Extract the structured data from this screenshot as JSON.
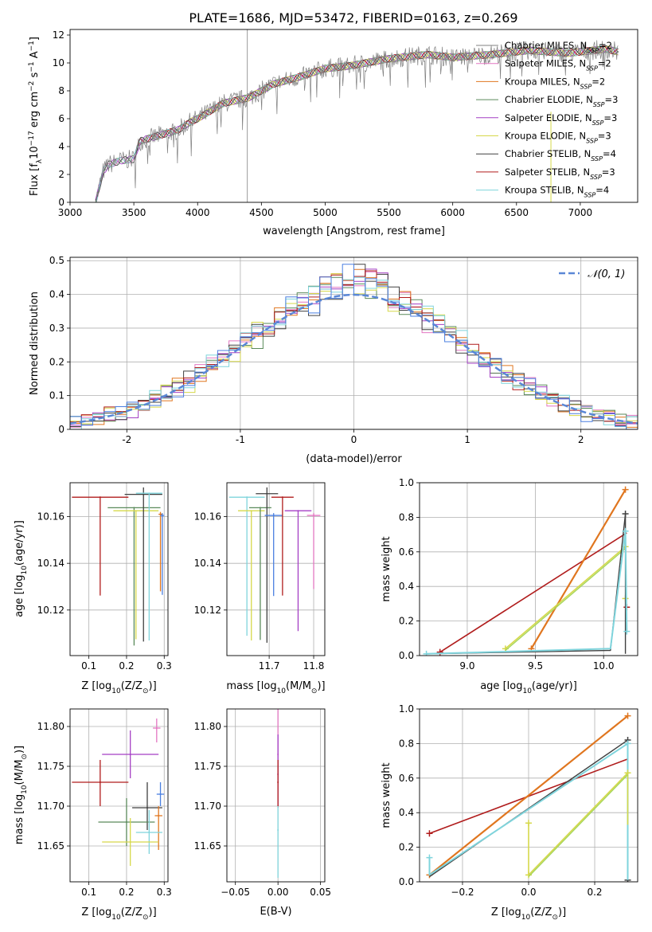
{
  "title": "PLATE=1686, MJD=53472, FIBERID=0163, z=0.269",
  "colors": {
    "chabrier_miles": "#808080",
    "salpeter_miles": "#e377c2",
    "kroupa_miles": "#e0761f",
    "chabrier_elodie": "#5a8a5a",
    "salpeter_elodie": "#a43fc4",
    "kroupa_elodie": "#d6d84a",
    "chabrier_stelib": "#404040",
    "salpeter_stelib": "#b01c1c",
    "kroupa_stelib": "#7fd4dc",
    "normal": "#5a87d6",
    "extra1": "#4a7fe0",
    "extra2": "#a6d65a"
  },
  "chart_data": [
    {
      "type": "line",
      "title": "PLATE=1686, MJD=53472, FIBERID=0163, z=0.269",
      "xlabel": "wavelength [Angstrom, rest frame]",
      "ylabel_parts": {
        "main": "Flux [f",
        "sub1": "λ",
        "mid": "10",
        "sup1": "−17",
        "rest": " erg cm",
        "sup2": "−2",
        "s": " s",
        "sup3": "−1",
        "a": " A",
        "sup4": "−1",
        "end": "]"
      },
      "xlim": [
        3000,
        7450
      ],
      "ylim": [
        0,
        12.4
      ],
      "xticks": [
        3000,
        3500,
        4000,
        4500,
        5000,
        5500,
        6000,
        6500,
        7000
      ],
      "yticks": [
        0,
        2,
        4,
        6,
        8,
        10,
        12
      ],
      "legend_position": "right",
      "series": [
        {
          "name": "Chabrier MILES, N",
          "sub": "SSP",
          "nval": "=2",
          "color_key": "chabrier_miles"
        },
        {
          "name": "Salpeter MILES, N",
          "sub": "SSP",
          "nval": "=2",
          "color_key": "salpeter_miles"
        },
        {
          "name": "Kroupa MILES, N",
          "sub": "SSP",
          "nval": "=2",
          "color_key": "kroupa_miles"
        },
        {
          "name": "Chabrier ELODIE, N",
          "sub": "SSP",
          "nval": "=3",
          "color_key": "chabrier_elodie"
        },
        {
          "name": "Salpeter ELODIE, N",
          "sub": "SSP",
          "nval": "=3",
          "color_key": "salpeter_elodie"
        },
        {
          "name": "Kroupa ELODIE, N",
          "sub": "SSP",
          "nval": "=3",
          "color_key": "kroupa_elodie"
        },
        {
          "name": "Chabrier STELIB, N",
          "sub": "SSP",
          "nval": "=4",
          "color_key": "chabrier_stelib"
        },
        {
          "name": "Salpeter STELIB, N",
          "sub": "SSP",
          "nval": "=3",
          "color_key": "salpeter_stelib"
        },
        {
          "name": "Kroupa STELIB, N",
          "sub": "SSP",
          "nval": "=4",
          "color_key": "kroupa_stelib"
        }
      ],
      "model_trend": {
        "x": [
          3200,
          3260,
          3300,
          3400,
          3500,
          3550,
          3700,
          3850,
          3950,
          4000,
          4200,
          4400,
          4600,
          4800,
          5000,
          5200,
          5500,
          5800,
          6000,
          6300,
          6600,
          6900,
          7200,
          7300
        ],
        "y": [
          0.0,
          2.2,
          2.7,
          3.0,
          3.1,
          4.4,
          4.8,
          5.2,
          5.8,
          6.0,
          7.1,
          7.5,
          8.5,
          9.0,
          9.6,
          9.8,
          10.3,
          10.6,
          10.4,
          10.6,
          10.9,
          10.7,
          11.0,
          10.8
        ]
      }
    },
    {
      "type": "step",
      "xlabel": "(data-model)/error",
      "ylabel": "Normed distribution",
      "xlim": [
        -2.5,
        2.5
      ],
      "ylim": [
        0,
        0.51
      ],
      "xticks": [
        -2,
        -1,
        0,
        1,
        2
      ],
      "yticks": [
        0.0,
        0.1,
        0.2,
        0.3,
        0.4,
        0.5
      ],
      "legend": "𝒩(0, 1)",
      "legend_position": "top-right",
      "bin_width": 0.1
    },
    {
      "type": "scatter",
      "xlabel_main": "Z [log",
      "xlabel_sub": "10",
      "xlabel_rest": "(Z/Z",
      "xlabel_end": ")]",
      "ylabel_main": "age  [log",
      "ylabel_sub": "10",
      "ylabel_rest": "(age/yr)]",
      "xlim": [
        0.05,
        0.31
      ],
      "ylim": [
        10.1005,
        10.1745
      ],
      "xticks": [
        "0.1",
        "0.2",
        "0.3"
      ],
      "yticks": [
        "10.12",
        "10.14",
        "10.16"
      ],
      "points": [
        {
          "x": 0.13,
          "xerr": 0.075,
          "y": 10.1683,
          "ylo": 10.1262,
          "yhi": 10.1683,
          "color_key": "salpeter_stelib"
        },
        {
          "x": 0.22,
          "xerr": 0.07,
          "y": 10.1638,
          "ylo": 10.1048,
          "yhi": 10.1638,
          "color_key": "chabrier_elodie"
        },
        {
          "x": 0.225,
          "xerr": 0.06,
          "y": 10.1625,
          "ylo": 10.1075,
          "yhi": 10.1625,
          "color_key": "kroupa_elodie"
        },
        {
          "x": 0.245,
          "xerr": 0.05,
          "y": 10.1695,
          "ylo": 10.1065,
          "yhi": 10.1725,
          "color_key": "chabrier_stelib"
        },
        {
          "x": 0.26,
          "xerr": 0.035,
          "y": 10.17,
          "ylo": 10.107,
          "yhi": 10.17,
          "color_key": "kroupa_stelib"
        },
        {
          "x": 0.29,
          "xerr": 0.005,
          "y": 10.161,
          "ylo": 10.128,
          "yhi": 10.162,
          "color_key": "kroupa_miles"
        },
        {
          "x": 0.295,
          "xerr": 0.005,
          "y": 10.1605,
          "ylo": 10.1265,
          "yhi": 10.1615,
          "color_key": "extra1"
        }
      ]
    },
    {
      "type": "scatter",
      "xlabel_main": "mass [log",
      "xlabel_sub": "10",
      "xlabel_rest": "(M/M",
      "xlabel_end": ")]",
      "xlim": [
        11.605,
        11.825
      ],
      "ylim": [
        10.1005,
        10.1745
      ],
      "xticks": [
        "11.7",
        "11.8"
      ],
      "yticks": [
        "10.12",
        "10.14",
        "10.16"
      ],
      "points": [
        {
          "x": 11.65,
          "xerr": 0.04,
          "y": 10.1683,
          "ylo": 10.109,
          "yhi": 10.1683,
          "color_key": "kroupa_stelib"
        },
        {
          "x": 11.66,
          "xerr": 0.03,
          "y": 10.1625,
          "ylo": 10.107,
          "yhi": 10.1625,
          "color_key": "kroupa_elodie"
        },
        {
          "x": 11.68,
          "xerr": 0.025,
          "y": 10.1638,
          "ylo": 10.1072,
          "yhi": 10.1638,
          "color_key": "chabrier_elodie"
        },
        {
          "x": 11.695,
          "xerr": 0.025,
          "y": 10.1698,
          "ylo": 10.106,
          "yhi": 10.1725,
          "color_key": "chabrier_stelib"
        },
        {
          "x": 11.71,
          "xerr": 0.02,
          "y": 10.1605,
          "ylo": 10.126,
          "yhi": 10.1615,
          "color_key": "extra1"
        },
        {
          "x": 11.73,
          "xerr": 0.025,
          "y": 10.1683,
          "ylo": 10.1262,
          "yhi": 10.1683,
          "color_key": "salpeter_stelib"
        },
        {
          "x": 11.765,
          "xerr": 0.03,
          "y": 10.1625,
          "ylo": 10.111,
          "yhi": 10.1625,
          "color_key": "salpeter_elodie"
        },
        {
          "x": 11.8,
          "xerr": 0.015,
          "y": 10.1605,
          "ylo": 10.129,
          "yhi": 10.1615,
          "color_key": "salpeter_miles"
        }
      ]
    },
    {
      "type": "line",
      "xlabel_main": "age  [log",
      "xlabel_sub": "10",
      "xlabel_rest": "(age/yr)]",
      "ylabel": "mass weight",
      "xlim": [
        8.65,
        10.25
      ],
      "ylim": [
        0,
        1.0
      ],
      "xticks": [
        "9.0",
        "9.5",
        "10.0"
      ],
      "yticks": [
        "0.0",
        "0.2",
        "0.4",
        "0.6",
        "0.8",
        "1.0"
      ],
      "series": [
        {
          "color_key": "salpeter_stelib",
          "width": 1.6,
          "x": [
            8.8,
            10.17
          ],
          "y": [
            0.02,
            0.71
          ],
          "marks": [
            [
              8.8,
              0.02
            ],
            [
              10.17,
              0.28
            ]
          ]
        },
        {
          "color_key": "kroupa_miles",
          "width": 2.2,
          "x": [
            9.47,
            10.16
          ],
          "y": [
            0.04,
            0.96
          ],
          "marks": [
            [
              9.47,
              0.04
            ],
            [
              10.16,
              0.96
            ]
          ]
        },
        {
          "color_key": "kroupa_elodie",
          "width": 1.6,
          "x": [
            9.28,
            10.16
          ],
          "y": [
            0.04,
            0.63
          ],
          "marks": [
            [
              9.28,
              0.04
            ],
            [
              10.16,
              0.63
            ],
            [
              10.16,
              0.33
            ]
          ]
        },
        {
          "color_key": "extra2",
          "width": 1.4,
          "x": [
            9.28,
            10.16
          ],
          "y": [
            0.03,
            0.62
          ],
          "marks": []
        },
        {
          "color_key": "chabrier_stelib",
          "width": 1.4,
          "x": [
            8.7,
            10.05,
            10.16,
            10.16
          ],
          "y": [
            0.01,
            0.03,
            0.82,
            0.01
          ],
          "marks": [
            [
              10.16,
              0.82
            ]
          ]
        },
        {
          "color_key": "kroupa_stelib",
          "width": 2.0,
          "x": [
            8.7,
            10.05,
            10.16,
            10.17
          ],
          "y": [
            0.01,
            0.04,
            0.72,
            0.14
          ],
          "marks": [
            [
              8.7,
              0.01
            ],
            [
              10.17,
              0.14
            ],
            [
              10.16,
              0.72
            ]
          ]
        }
      ]
    },
    {
      "type": "scatter",
      "xlabel_main": "Z [log",
      "xlabel_sub": "10",
      "xlabel_rest": "(Z/Z",
      "xlabel_end": ")]",
      "ylabel_main": "mass [log",
      "ylabel_sub": "10",
      "ylabel_rest": "(M/M",
      "ylabel_end": ")]",
      "xlim": [
        0.05,
        0.31
      ],
      "ylim": [
        11.605,
        11.822
      ],
      "xticks": [
        "0.1",
        "0.2",
        "0.3"
      ],
      "yticks": [
        "11.65",
        "11.70",
        "11.75",
        "11.80"
      ],
      "points": [
        {
          "x": 0.28,
          "xerr": 0.01,
          "y": 11.798,
          "ylo": 11.78,
          "yhi": 11.81,
          "color_key": "salpeter_miles"
        },
        {
          "x": 0.21,
          "xerr": 0.075,
          "y": 11.765,
          "ylo": 11.735,
          "yhi": 11.795,
          "color_key": "salpeter_elodie"
        },
        {
          "x": 0.13,
          "xerr": 0.075,
          "y": 11.73,
          "ylo": 11.7,
          "yhi": 11.758,
          "color_key": "salpeter_stelib"
        },
        {
          "x": 0.29,
          "xerr": 0.01,
          "y": 11.715,
          "ylo": 11.7,
          "yhi": 11.73,
          "color_key": "extra1"
        },
        {
          "x": 0.255,
          "xerr": 0.04,
          "y": 11.698,
          "ylo": 11.67,
          "yhi": 11.73,
          "color_key": "chabrier_stelib"
        },
        {
          "x": 0.285,
          "xerr": 0.01,
          "y": 11.688,
          "ylo": 11.645,
          "yhi": 11.7,
          "color_key": "kroupa_miles"
        },
        {
          "x": 0.2,
          "xerr": 0.075,
          "y": 11.68,
          "ylo": 11.65,
          "yhi": 11.71,
          "color_key": "chabrier_elodie"
        },
        {
          "x": 0.26,
          "xerr": 0.035,
          "y": 11.667,
          "ylo": 11.64,
          "yhi": 11.695,
          "color_key": "kroupa_stelib"
        },
        {
          "x": 0.21,
          "xerr": 0.075,
          "y": 11.655,
          "ylo": 11.625,
          "yhi": 11.685,
          "color_key": "kroupa_elodie"
        }
      ]
    },
    {
      "type": "scatter",
      "xlabel": "E(B-V)",
      "xlim": [
        -0.06,
        0.055
      ],
      "ylim": [
        11.605,
        11.822
      ],
      "xticks": [
        "−0.05",
        "0.00",
        "0.05"
      ],
      "yticks": [
        "11.65",
        "11.70",
        "11.75",
        "11.80"
      ],
      "points": [
        {
          "x": 0.0,
          "xerr": 0.0,
          "y": 11.765,
          "ylo": 11.73,
          "yhi": 11.822,
          "color_key": "salpeter_miles"
        },
        {
          "x": 0.0,
          "xerr": 0.0,
          "y": 11.74,
          "ylo": 11.7,
          "yhi": 11.79,
          "color_key": "salpeter_elodie"
        },
        {
          "x": 0.0,
          "xerr": 0.0,
          "y": 11.73,
          "ylo": 11.698,
          "yhi": 11.758,
          "color_key": "salpeter_stelib"
        },
        {
          "x": 0.0,
          "xerr": 0.0,
          "y": 11.67,
          "ylo": 11.61,
          "yhi": 11.7,
          "color_key": "kroupa_stelib"
        }
      ]
    },
    {
      "type": "line",
      "xlabel_main": "Z [log",
      "xlabel_sub": "10",
      "xlabel_rest": "(Z/Z",
      "xlabel_end": ")]",
      "ylabel": "mass weight",
      "xlim": [
        -0.33,
        0.33
      ],
      "ylim": [
        0,
        1.0
      ],
      "xticks": [
        "−0.2",
        "0.0",
        "0.2"
      ],
      "yticks": [
        "0.0",
        "0.2",
        "0.4",
        "0.6",
        "0.8",
        "1.0"
      ],
      "series": [
        {
          "color_key": "salpeter_stelib",
          "width": 1.6,
          "x": [
            -0.3,
            0.3
          ],
          "y": [
            0.28,
            0.71
          ],
          "marks": [
            [
              -0.3,
              0.28
            ]
          ]
        },
        {
          "color_key": "kroupa_miles",
          "width": 2.2,
          "x": [
            -0.3,
            0.3
          ],
          "y": [
            0.04,
            0.96
          ],
          "marks": [
            [
              -0.3,
              0.04
            ],
            [
              0.3,
              0.96
            ]
          ]
        },
        {
          "color_key": "chabrier_stelib",
          "width": 1.4,
          "x": [
            -0.3,
            0.3,
            0.3
          ],
          "y": [
            0.03,
            0.82,
            0.01
          ],
          "marks": [
            [
              0.3,
              0.82
            ],
            [
              0.3,
              0.01
            ]
          ]
        },
        {
          "color_key": "kroupa_stelib",
          "width": 2.0,
          "x": [
            -0.3,
            -0.3,
            0.3,
            0.3
          ],
          "y": [
            0.14,
            0.04,
            0.8,
            0.01
          ],
          "marks": [
            [
              -0.3,
              0.14
            ],
            [
              0.3,
              0.8
            ]
          ]
        },
        {
          "color_key": "kroupa_elodie",
          "width": 1.6,
          "x": [
            0.0,
            0.0,
            0.3,
            0.3
          ],
          "y": [
            0.34,
            0.04,
            0.63,
            0.33
          ],
          "marks": [
            [
              0.0,
              0.34
            ],
            [
              0.0,
              0.04
            ],
            [
              0.3,
              0.63
            ]
          ]
        },
        {
          "color_key": "extra2",
          "width": 1.4,
          "x": [
            0.0,
            0.3
          ],
          "y": [
            0.03,
            0.62
          ],
          "marks": []
        }
      ]
    }
  ]
}
